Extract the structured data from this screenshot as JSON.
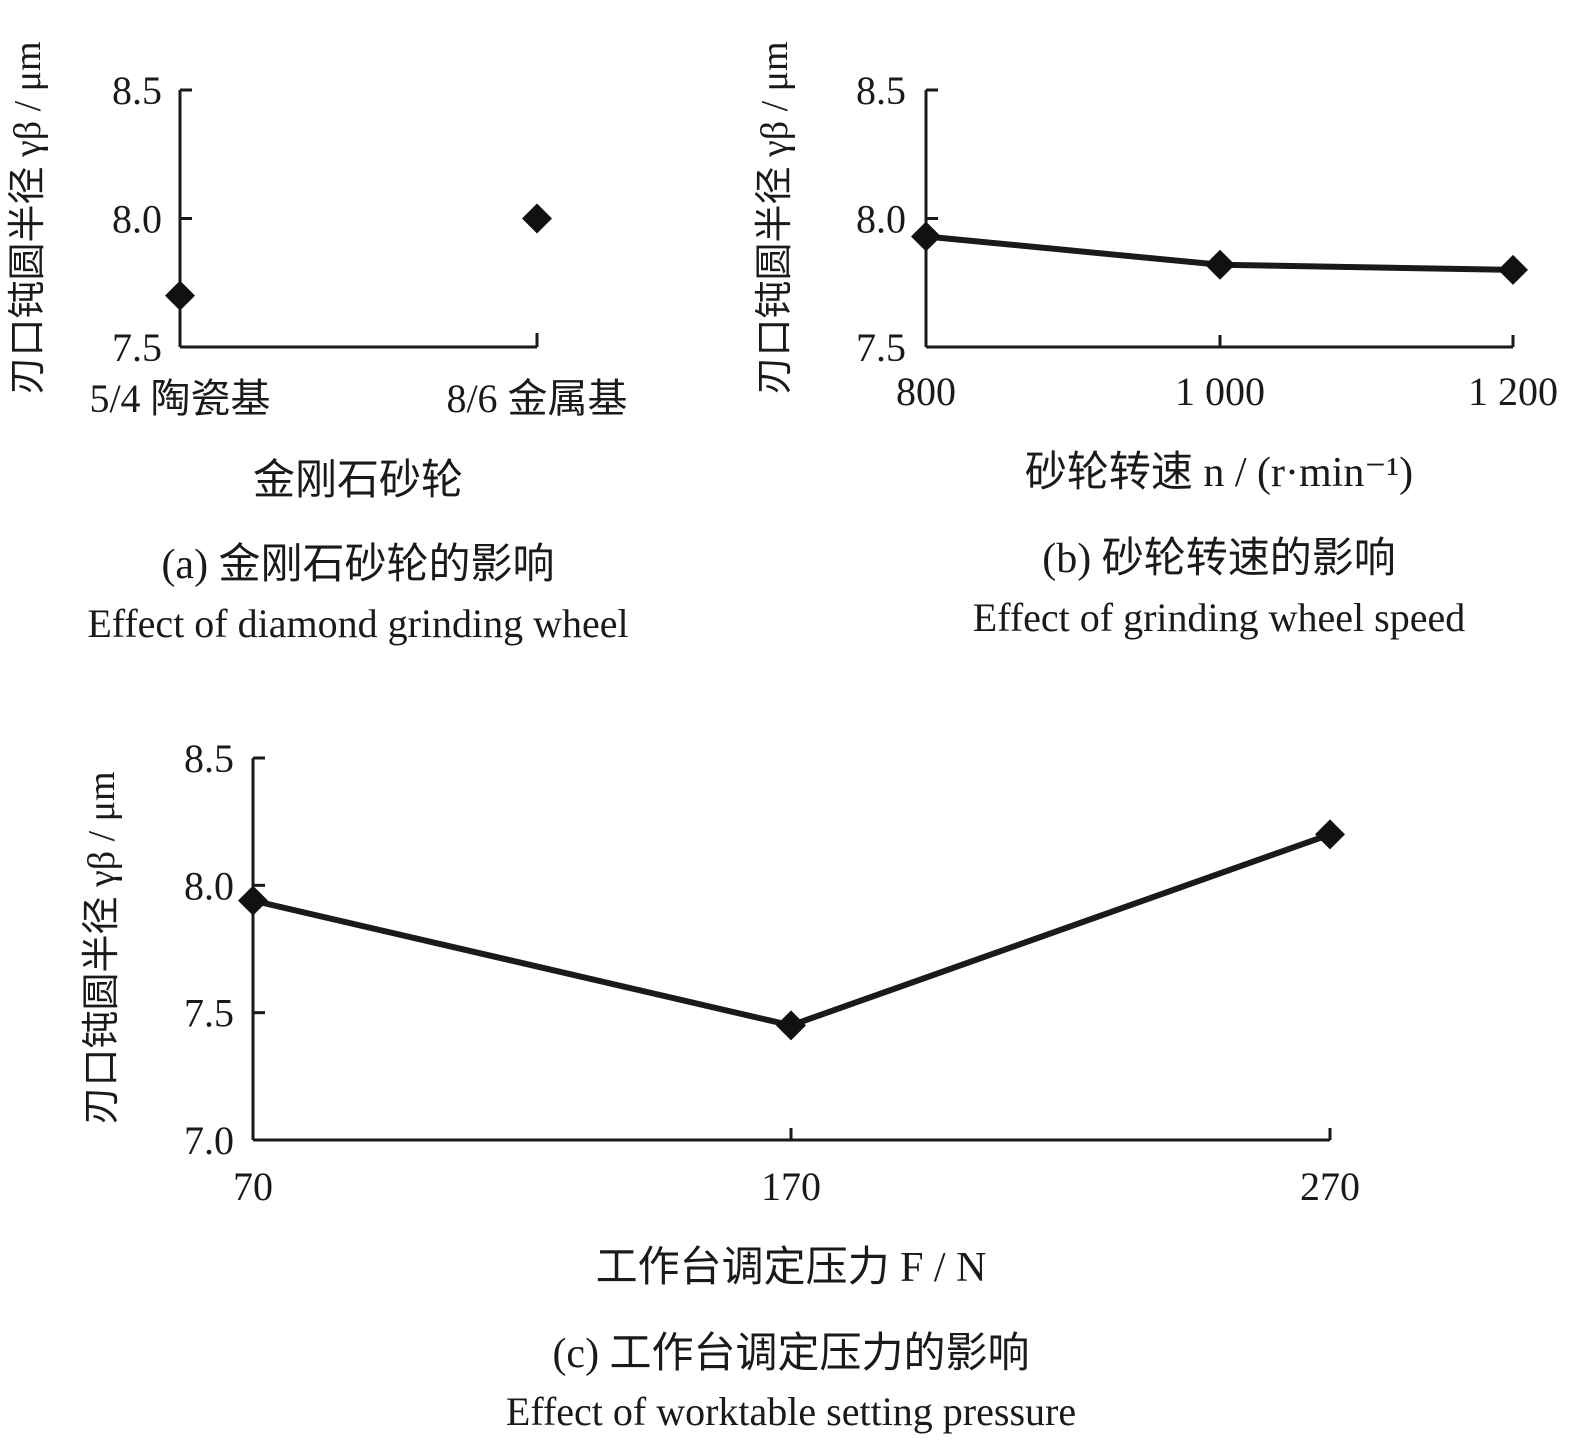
{
  "chart_data": [
    {
      "id": "a",
      "type": "scatter",
      "categories": [
        "5/4 陶瓷基",
        "8/6 金属基"
      ],
      "values": [
        7.7,
        8.0
      ],
      "ylim": [
        7.5,
        8.5
      ],
      "yticks": [
        "7.5",
        "8.0",
        "8.5"
      ],
      "ytick_values": [
        7.5,
        8.0,
        8.5
      ],
      "xlabel": "金刚石砂轮",
      "ylabel": "刃口钝圆半径 γβ / μm",
      "caption_cn": "(a) 金刚石砂轮的影响",
      "caption_en": "Effect of diamond grinding wheel",
      "connected": false
    },
    {
      "id": "b",
      "type": "line",
      "x": [
        800,
        1000,
        1200
      ],
      "values": [
        7.93,
        7.82,
        7.8
      ],
      "xticks": [
        "800",
        "1 000",
        "1 200"
      ],
      "ylim": [
        7.5,
        8.5
      ],
      "yticks": [
        "7.5",
        "8.0",
        "8.5"
      ],
      "ytick_values": [
        7.5,
        8.0,
        8.5
      ],
      "xlabel": "砂轮转速 n / (r·min⁻¹)",
      "ylabel": "刃口钝圆半径 γβ / μm",
      "caption_cn": "(b) 砂轮转速的影响",
      "caption_en": "Effect of grinding wheel speed",
      "connected": true
    },
    {
      "id": "c",
      "type": "line",
      "x": [
        70,
        170,
        270
      ],
      "values": [
        7.94,
        7.45,
        8.2
      ],
      "xticks": [
        "70",
        "170",
        "270"
      ],
      "ylim": [
        7.0,
        8.5
      ],
      "yticks": [
        "7.0",
        "7.5",
        "8.0",
        "8.5"
      ],
      "ytick_values": [
        7.0,
        7.5,
        8.0,
        8.5
      ],
      "xlabel": "工作台调定压力 F / N",
      "ylabel": "刃口钝圆半径 γβ / μm",
      "caption_cn": "(c) 工作台调定压力的影响",
      "caption_en": "Effect of worktable setting pressure",
      "connected": true
    }
  ]
}
